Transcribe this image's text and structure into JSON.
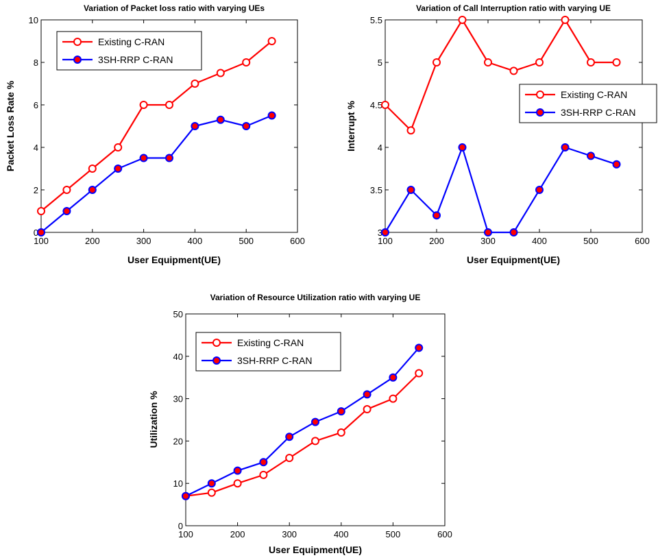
{
  "colors": {
    "existing": "#ff0000",
    "proposed": "#0000ff",
    "marker_fill_proposed": "#ff0000"
  },
  "chart_data": [
    {
      "type": "line",
      "title": "Variation of Packet loss ratio with varying UEs",
      "xlabel": "User Equipment(UE)",
      "ylabel": "Packet Loss Rate %",
      "xlim": [
        100,
        600
      ],
      "ylim": [
        0,
        10
      ],
      "xticks": [
        100,
        200,
        300,
        400,
        500,
        600
      ],
      "yticks": [
        0,
        2,
        4,
        6,
        8,
        10
      ],
      "ytick_labels": [
        "0",
        "2",
        "4",
        "6",
        "8",
        "10"
      ],
      "legend_position": "top-left",
      "grid": false,
      "x": [
        100,
        150,
        200,
        250,
        300,
        350,
        400,
        450,
        500,
        550
      ],
      "series": [
        {
          "name": "Existing C-RAN",
          "values": [
            1,
            2,
            3,
            4,
            6,
            6,
            7,
            7.5,
            8,
            9
          ]
        },
        {
          "name": "3SH-RRP C-RAN",
          "values": [
            0,
            1,
            2,
            3,
            3.5,
            3.5,
            5,
            5.3,
            5,
            5.5
          ]
        }
      ]
    },
    {
      "type": "line",
      "title": "Variation of Call Interruption ratio with varying UE",
      "xlabel": "User Equipment(UE)",
      "ylabel": "Interrupt %",
      "xlim": [
        100,
        600
      ],
      "ylim": [
        3,
        5.5
      ],
      "xticks": [
        100,
        200,
        300,
        400,
        500,
        600
      ],
      "yticks": [
        3,
        3.5,
        4,
        4.5,
        5,
        5.5
      ],
      "ytick_labels": [
        "3",
        "3.5",
        "4",
        "4.5",
        "5",
        "5.5"
      ],
      "legend_position": "right",
      "grid": false,
      "x": [
        100,
        150,
        200,
        250,
        300,
        350,
        400,
        450,
        500,
        550
      ],
      "series": [
        {
          "name": "Existing C-RAN",
          "values": [
            4.5,
            4.2,
            5,
            5.5,
            5,
            4.9,
            5,
            5.5,
            5,
            5
          ]
        },
        {
          "name": "3SH-RRP C-RAN",
          "values": [
            3,
            3.5,
            3.2,
            4,
            3,
            3,
            3.5,
            4,
            3.9,
            3.8
          ]
        }
      ]
    },
    {
      "type": "line",
      "title": "Variation of Resource Utilization ratio with varying UE",
      "xlabel": "User Equipment(UE)",
      "ylabel": "Utilization %",
      "xlim": [
        100,
        600
      ],
      "ylim": [
        0,
        50
      ],
      "xticks": [
        100,
        200,
        300,
        400,
        500,
        600
      ],
      "yticks": [
        0,
        10,
        20,
        30,
        40,
        50
      ],
      "ytick_labels": [
        "0",
        "10",
        "20",
        "30",
        "40",
        "50"
      ],
      "legend_position": "top-left",
      "grid": false,
      "x": [
        100,
        150,
        200,
        250,
        300,
        350,
        400,
        450,
        500,
        550
      ],
      "series": [
        {
          "name": "Existing C-RAN",
          "values": [
            7,
            7.8,
            10,
            12,
            16,
            20,
            22,
            27.5,
            30,
            36
          ]
        },
        {
          "name": "3SH-RRP C-RAN",
          "values": [
            7,
            10,
            13,
            15,
            21,
            24.5,
            27,
            31,
            35,
            42
          ]
        }
      ]
    }
  ]
}
